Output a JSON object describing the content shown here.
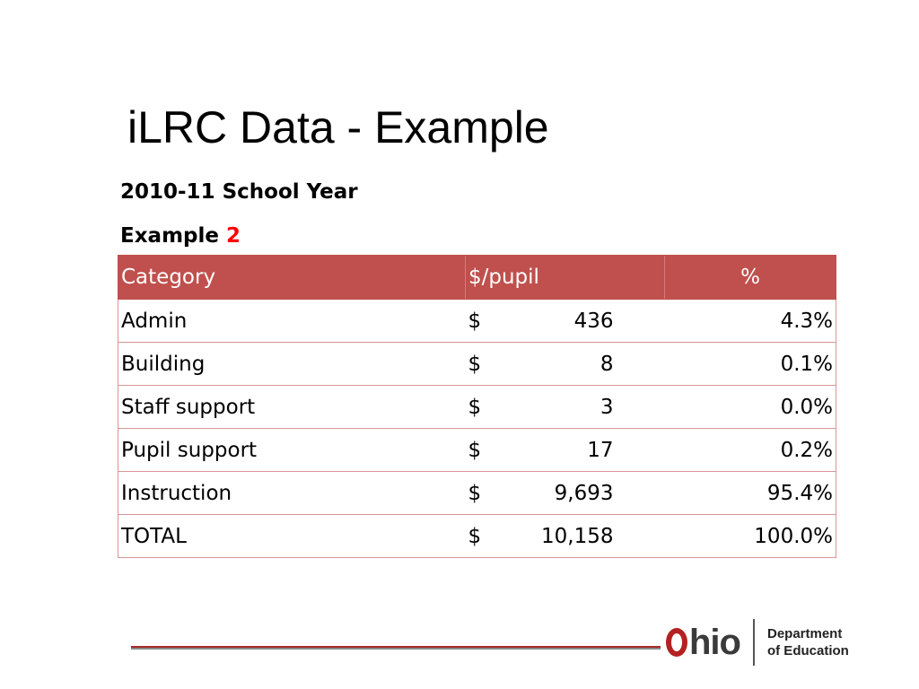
{
  "slide": {
    "title": "iLRC Data - Example",
    "school_year": "2010-11 School Year",
    "example_label": "Example",
    "example_number": "2"
  },
  "table": {
    "headers": {
      "category": "Category",
      "per_pupil": "$/pupil",
      "percent": "%"
    },
    "currency_symbol": "$",
    "rows": [
      {
        "category": "Admin",
        "amount": "436",
        "percent": "4.3%"
      },
      {
        "category": "Building",
        "amount": "8",
        "percent": "0.1%"
      },
      {
        "category": "Staff support",
        "amount": "3",
        "percent": "0.0%"
      },
      {
        "category": "Pupil support",
        "amount": "17",
        "percent": "0.2%"
      },
      {
        "category": "Instruction",
        "amount": "9,693",
        "percent": "95.4%"
      },
      {
        "category": "TOTAL",
        "amount": "10,158",
        "percent": "100.0%"
      }
    ]
  },
  "logo": {
    "brand_rest": "hio",
    "dept_line1": "Department",
    "dept_line2": "of Education"
  },
  "colors": {
    "header_fill": "#c0504d",
    "example_number": "#ff0000",
    "logo_o": "#b22222"
  }
}
